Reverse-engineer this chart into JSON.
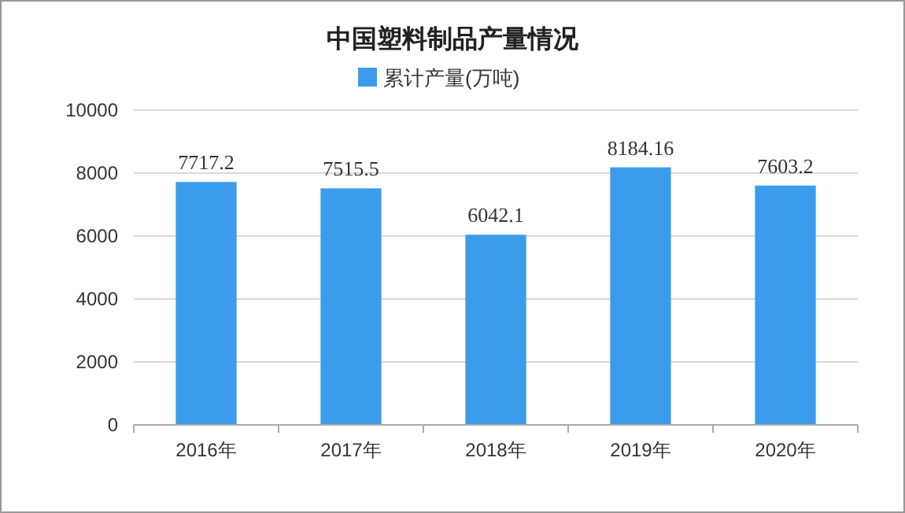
{
  "chart_data": {
    "type": "bar",
    "title": "中国塑料制品产量情况",
    "categories": [
      "2016年",
      "2017年",
      "2018年",
      "2019年",
      "2020年"
    ],
    "series": [
      {
        "name": "累计产量(万吨)",
        "color": "#3c9cec",
        "values": [
          7717.2,
          7515.5,
          6042.1,
          8184.16,
          7603.2
        ]
      }
    ],
    "ylim": [
      0,
      10000
    ],
    "yticks": [
      0,
      2000,
      4000,
      6000,
      8000,
      10000
    ],
    "grid": "y",
    "legend": "top",
    "data_labels": true
  }
}
